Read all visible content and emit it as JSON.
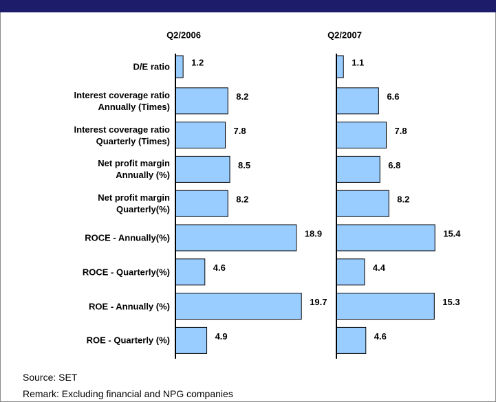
{
  "chart_data": {
    "type": "bar",
    "orientation": "horizontal",
    "categories": [
      "D/E ratio",
      "Interest coverage ratio\nAnnually (Times)",
      "Interest coverage ratio\nQuarterly (Times)",
      "Net profit margin\nAnnually (%)",
      "Net profit margin\nQuarterly(%)",
      "ROCE - Annually(%)",
      "ROCE - Quarterly(%)",
      "ROE - Annually (%)",
      "ROE - Quarterly (%)"
    ],
    "series": [
      {
        "name": "Q2/2006",
        "color": "#99ccff",
        "values": [
          1.2,
          8.2,
          7.8,
          8.5,
          8.2,
          18.9,
          4.6,
          19.7,
          4.9
        ]
      },
      {
        "name": "Q2/2007",
        "color": "#99ccff",
        "values": [
          1.1,
          6.6,
          7.8,
          6.8,
          8.2,
          15.4,
          4.4,
          15.3,
          4.6
        ]
      }
    ],
    "source": "Source: SET",
    "remark": "Remark: Excluding financial and NPG companies"
  }
}
